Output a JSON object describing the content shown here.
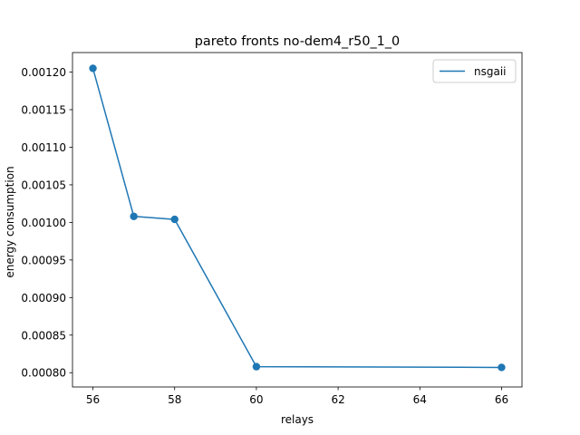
{
  "chart_data": {
    "type": "line",
    "title": "pareto fronts no-dem4_r50_1_0",
    "xlabel": "relays",
    "ylabel": "energy consumption",
    "xlim": [
      55.5,
      66.5
    ],
    "ylim": [
      0.000781,
      0.001226
    ],
    "xticks": [
      56,
      58,
      60,
      62,
      64,
      66
    ],
    "yticks": [
      0.0008,
      0.00085,
      0.0009,
      0.00095,
      0.001,
      0.00105,
      0.0011,
      0.00115,
      0.0012
    ],
    "ytick_labels": [
      "0.00080",
      "0.00085",
      "0.00090",
      "0.00095",
      "0.00100",
      "0.00105",
      "0.00110",
      "0.00115",
      "0.00120"
    ],
    "grid": false,
    "legend_position": "top-right",
    "series": [
      {
        "name": "nsgaii",
        "color": "#1f77b4",
        "marker": "circle",
        "x": [
          56,
          57,
          58,
          60,
          66
        ],
        "y": [
          0.001205,
          0.001008,
          0.001004,
          0.000808,
          0.000807
        ]
      }
    ]
  }
}
